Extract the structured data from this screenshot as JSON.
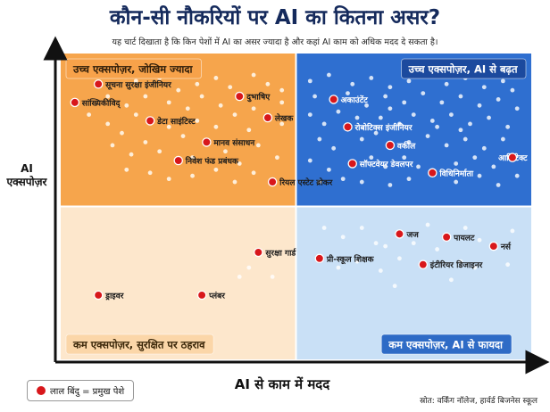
{
  "title": "कौन-सी नौकरियों पर AI का कितना असर?",
  "subtitle": "यह चार्ट दिखाता है कि किन पेशों में AI का असर ज्यादा है और कहां AI काम को अधिक मदद दे सकता है।",
  "legend": {
    "label": "लाल बिंदु = प्रमुख पेशे",
    "color": "#d8171b"
  },
  "source": "स्रोत: वर्किंग नॉलेज, हार्वर्ड बिजनेस स्कूल",
  "chart_data": {
    "type": "scatter",
    "xlabel": "AI से काम में मदद",
    "ylabel": [
      "AI",
      "एक्सपोज़र"
    ],
    "xlim": [
      0,
      1
    ],
    "ylim": [
      0,
      1
    ],
    "grid": false,
    "legend_position": "bottom-left",
    "quadrants": [
      {
        "label": "उच्च एक्सपोज़र, जोखिम ज्यादा",
        "position": "top-left",
        "fill": "#f6a54c"
      },
      {
        "label": "उच्च एक्सपोज़र, AI से बढ़त",
        "position": "top-right",
        "fill": "#2f6fd0"
      },
      {
        "label": "कम एक्सपोज़र, सुरक्षित पर ठहराव",
        "position": "bottom-left",
        "fill": "#fde7cc"
      },
      {
        "label": "कम एक्सपोज़र, AI से फायदा",
        "position": "bottom-right",
        "fill": "#c9e0f6"
      }
    ],
    "points": [
      {
        "name": "सूचना सुरक्षा इंजीनियर",
        "x": 0.08,
        "y": 0.9
      },
      {
        "name": "सांख्यिकीविद्",
        "x": 0.03,
        "y": 0.84
      },
      {
        "name": "दुभाषिए",
        "x": 0.38,
        "y": 0.86
      },
      {
        "name": "डेटा साइंटिस्ट",
        "x": 0.19,
        "y": 0.78
      },
      {
        "name": "लेखक",
        "x": 0.44,
        "y": 0.79
      },
      {
        "name": "मानव संसाधन",
        "x": 0.31,
        "y": 0.71
      },
      {
        "name": "निवेश फंड प्रबंधक",
        "x": 0.25,
        "y": 0.65
      },
      {
        "name": "रियल एस्टेट ब्रोकर",
        "x": 0.45,
        "y": 0.58
      },
      {
        "name": "अकाउंटेंट",
        "x": 0.58,
        "y": 0.85
      },
      {
        "name": "रोबोटिक्स इंजीनियर",
        "x": 0.61,
        "y": 0.76
      },
      {
        "name": "वकील",
        "x": 0.7,
        "y": 0.7
      },
      {
        "name": "सॉफ्टवेयर डेवलपर",
        "x": 0.62,
        "y": 0.64
      },
      {
        "name": "विधिनिर्माता",
        "x": 0.79,
        "y": 0.61
      },
      {
        "name": "आर्किटेक्ट",
        "x": 0.96,
        "y": 0.66
      },
      {
        "name": "सुरक्षा गार्ड",
        "x": 0.42,
        "y": 0.35
      },
      {
        "name": "ड्राइवर",
        "x": 0.08,
        "y": 0.21
      },
      {
        "name": "प्लंबर",
        "x": 0.3,
        "y": 0.21
      },
      {
        "name": "जज",
        "x": 0.72,
        "y": 0.41
      },
      {
        "name": "पायलट",
        "x": 0.82,
        "y": 0.4
      },
      {
        "name": "नर्स",
        "x": 0.92,
        "y": 0.37
      },
      {
        "name": "प्री-स्कूल शिक्षक",
        "x": 0.55,
        "y": 0.33
      },
      {
        "name": "इंटीरियर डिजाइनर",
        "x": 0.77,
        "y": 0.31
      }
    ],
    "background_points": [
      [
        0.12,
        0.93
      ],
      [
        0.16,
        0.91
      ],
      [
        0.21,
        0.92
      ],
      [
        0.25,
        0.88
      ],
      [
        0.29,
        0.9
      ],
      [
        0.33,
        0.92
      ],
      [
        0.36,
        0.89
      ],
      [
        0.41,
        0.93
      ],
      [
        0.44,
        0.9
      ],
      [
        0.47,
        0.88
      ],
      [
        0.1,
        0.86
      ],
      [
        0.14,
        0.83
      ],
      [
        0.18,
        0.86
      ],
      [
        0.23,
        0.84
      ],
      [
        0.27,
        0.82
      ],
      [
        0.3,
        0.86
      ],
      [
        0.34,
        0.83
      ],
      [
        0.41,
        0.82
      ],
      [
        0.47,
        0.84
      ],
      [
        0.06,
        0.8
      ],
      [
        0.1,
        0.77
      ],
      [
        0.13,
        0.74
      ],
      [
        0.16,
        0.8
      ],
      [
        0.23,
        0.76
      ],
      [
        0.26,
        0.73
      ],
      [
        0.29,
        0.78
      ],
      [
        0.33,
        0.76
      ],
      [
        0.37,
        0.8
      ],
      [
        0.4,
        0.75
      ],
      [
        0.47,
        0.77
      ],
      [
        0.11,
        0.7
      ],
      [
        0.15,
        0.67
      ],
      [
        0.18,
        0.71
      ],
      [
        0.21,
        0.68
      ],
      [
        0.28,
        0.66
      ],
      [
        0.35,
        0.68
      ],
      [
        0.38,
        0.64
      ],
      [
        0.42,
        0.7
      ],
      [
        0.46,
        0.66
      ],
      [
        0.19,
        0.61
      ],
      [
        0.23,
        0.59
      ],
      [
        0.28,
        0.6
      ],
      [
        0.33,
        0.62
      ],
      [
        0.37,
        0.58
      ],
      [
        0.41,
        0.61
      ],
      [
        0.14,
        0.62
      ],
      [
        0.53,
        0.91
      ],
      [
        0.57,
        0.93
      ],
      [
        0.62,
        0.9
      ],
      [
        0.66,
        0.92
      ],
      [
        0.7,
        0.89
      ],
      [
        0.74,
        0.91
      ],
      [
        0.78,
        0.93
      ],
      [
        0.82,
        0.9
      ],
      [
        0.86,
        0.92
      ],
      [
        0.9,
        0.89
      ],
      [
        0.94,
        0.91
      ],
      [
        0.54,
        0.86
      ],
      [
        0.61,
        0.87
      ],
      [
        0.65,
        0.83
      ],
      [
        0.69,
        0.86
      ],
      [
        0.73,
        0.84
      ],
      [
        0.77,
        0.87
      ],
      [
        0.81,
        0.84
      ],
      [
        0.85,
        0.86
      ],
      [
        0.89,
        0.83
      ],
      [
        0.93,
        0.85
      ],
      [
        0.97,
        0.82
      ],
      [
        0.53,
        0.8
      ],
      [
        0.56,
        0.77
      ],
      [
        0.59,
        0.81
      ],
      [
        0.68,
        0.79
      ],
      [
        0.72,
        0.77
      ],
      [
        0.75,
        0.8
      ],
      [
        0.79,
        0.78
      ],
      [
        0.83,
        0.8
      ],
      [
        0.87,
        0.77
      ],
      [
        0.91,
        0.79
      ],
      [
        0.95,
        0.76
      ],
      [
        0.55,
        0.72
      ],
      [
        0.58,
        0.69
      ],
      [
        0.64,
        0.72
      ],
      [
        0.67,
        0.74
      ],
      [
        0.74,
        0.71
      ],
      [
        0.78,
        0.73
      ],
      [
        0.82,
        0.7
      ],
      [
        0.86,
        0.72
      ],
      [
        0.9,
        0.69
      ],
      [
        0.94,
        0.72
      ],
      [
        0.53,
        0.65
      ],
      [
        0.57,
        0.62
      ],
      [
        0.66,
        0.66
      ],
      [
        0.69,
        0.63
      ],
      [
        0.73,
        0.66
      ],
      [
        0.76,
        0.63
      ],
      [
        0.84,
        0.64
      ],
      [
        0.88,
        0.66
      ],
      [
        0.92,
        0.63
      ],
      [
        0.55,
        0.58
      ],
      [
        0.6,
        0.59
      ],
      [
        0.64,
        0.58
      ],
      [
        0.7,
        0.57
      ],
      [
        0.74,
        0.59
      ],
      [
        0.84,
        0.58
      ],
      [
        0.89,
        0.6
      ],
      [
        0.93,
        0.57
      ],
      [
        0.97,
        0.6
      ],
      [
        0.8,
        0.76
      ],
      [
        0.63,
        0.79
      ],
      [
        0.85,
        0.75
      ],
      [
        0.7,
        0.82
      ],
      [
        0.96,
        0.88
      ],
      [
        0.56,
        0.43
      ],
      [
        0.6,
        0.4
      ],
      [
        0.64,
        0.43
      ],
      [
        0.67,
        0.38
      ],
      [
        0.78,
        0.44
      ],
      [
        0.86,
        0.43
      ],
      [
        0.89,
        0.39
      ],
      [
        0.96,
        0.42
      ],
      [
        0.59,
        0.3
      ],
      [
        0.63,
        0.32
      ],
      [
        0.68,
        0.29
      ],
      [
        0.72,
        0.33
      ],
      [
        0.85,
        0.32
      ],
      [
        0.88,
        0.3
      ],
      [
        0.95,
        0.31
      ],
      [
        0.69,
        0.37
      ],
      [
        0.75,
        0.38
      ],
      [
        0.8,
        0.36
      ],
      [
        0.71,
        0.24
      ],
      [
        0.83,
        0.26
      ],
      [
        0.4,
        0.3
      ],
      [
        0.38,
        0.27
      ],
      [
        0.45,
        0.27
      ]
    ]
  }
}
